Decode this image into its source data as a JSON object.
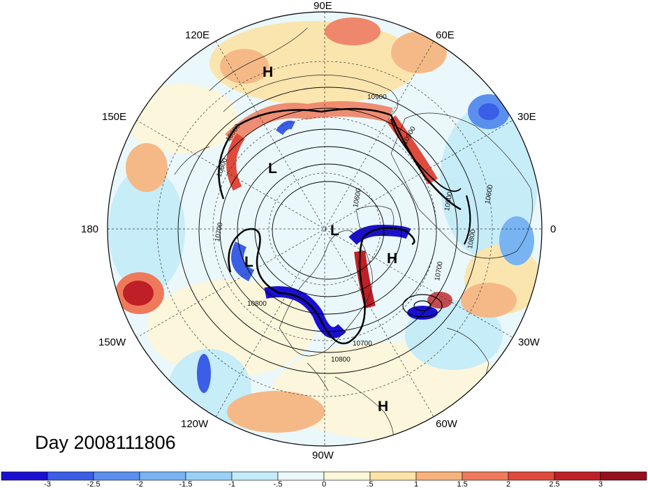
{
  "title": "Day 2008111806",
  "longitude_labels": [
    "90E",
    "60E",
    "30E",
    "0",
    "30W",
    "60W",
    "90W",
    "120W",
    "150W",
    "180",
    "150E",
    "120E"
  ],
  "contour_labels": [
    "10900",
    "10900",
    "10800",
    "10700",
    "10800",
    "10600",
    "10700",
    "10800",
    "10500",
    "10600",
    "10700",
    "10800",
    "10900"
  ],
  "pressure_centers": [
    "H",
    "L",
    "L",
    "L",
    "H",
    "H"
  ],
  "colorbar": {
    "tick_labels": [
      "-3",
      "-2.5",
      "-2",
      "-1.5",
      "-1",
      "-.5",
      "0",
      ".5",
      "1",
      "1.5",
      "2",
      "2.5",
      "3"
    ],
    "colors": [
      "#1a0fd1",
      "#3b5ee6",
      "#5a8fee",
      "#78b3f2",
      "#98d1f5",
      "#c3ebf8",
      "#eaf8fb",
      "#fdf6d9",
      "#fde3a6",
      "#f7b27b",
      "#ef7a5b",
      "#e04a3c",
      "#bf1f26",
      "#96101e"
    ]
  }
}
